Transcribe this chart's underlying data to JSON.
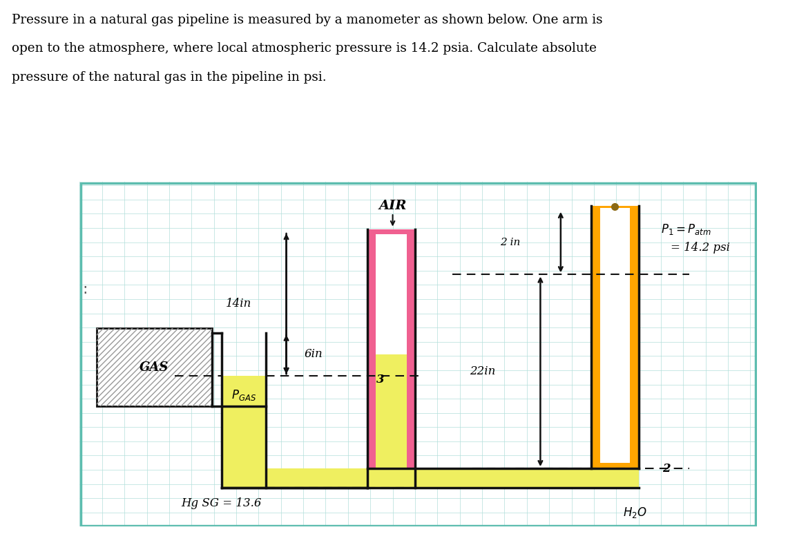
{
  "bg_color": "#e8f5e9",
  "grid_color": "#b2dfdb",
  "border_color": "#5dbdaf",
  "orange_color": "#FFA500",
  "pink_color": "#F06090",
  "yellow_color": "#EFEF60",
  "hatch_color": "#777777",
  "dark_color": "#111111",
  "label_GAS": "GAS",
  "label_AIR": "AIR",
  "label_14in": "14in",
  "label_6in": "6in",
  "label_22in": "22in",
  "label_2in": "2 in",
  "label_HgSG": "Hg SG = 13.6",
  "label_3": "3",
  "label_2": "2",
  "label_P1_line1": "P₁ = Patm",
  "label_P1_line2": "= 14.2 psi",
  "label_H2O": "H₂O",
  "label_PGAS": "Pₓₐₛ",
  "title_line1": "Pressure in a natural gas pipeline is measured by a manometer as shown below. One arm is",
  "title_line2": "open to the atmosphere, where local atmospheric pressure is 14.2 psia. Calculate absolute",
  "title_line3": "pressure of the natural gas in the pipeline in psi."
}
